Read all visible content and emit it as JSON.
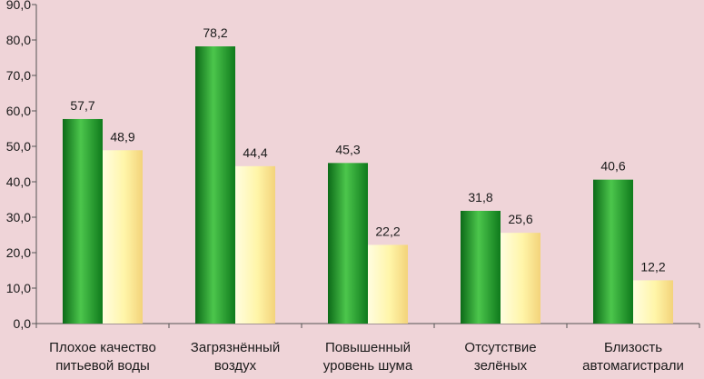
{
  "colors": {
    "background": "#efd4d8",
    "series_1_light": "#4cc64c",
    "series_1_dark": "#0c6a18",
    "series_2_light": "#fffbb5",
    "series_2_dark": "#f6dc7a",
    "axis": "#555555"
  },
  "chart_data": {
    "type": "bar",
    "title": "",
    "xlabel": "",
    "ylabel": "",
    "ylim": [
      0,
      90
    ],
    "y_ticks": [
      "0,0",
      "10,0",
      "20,0",
      "30,0",
      "40,0",
      "50,0",
      "60,0",
      "70,0",
      "80,0",
      "90,0"
    ],
    "grid": false,
    "legend": "none",
    "categories": [
      [
        "Плохое качество",
        "питьевой воды"
      ],
      [
        "Загрязнённый",
        "воздух"
      ],
      [
        "Повышенный",
        "уровень шума"
      ],
      [
        "Отсутствие",
        "зелёных"
      ],
      [
        "Близость",
        "автомагистрали"
      ]
    ],
    "series": [
      {
        "values": [
          57.7,
          78.2,
          45.3,
          31.8,
          40.6
        ],
        "labels": [
          "57,7",
          "78,2",
          "45,3",
          "31,8",
          "40,6"
        ]
      },
      {
        "values": [
          48.9,
          44.4,
          22.2,
          25.6,
          12.2
        ],
        "labels": [
          "48,9",
          "44,4",
          "22,2",
          "25,6",
          "12,2"
        ]
      }
    ]
  }
}
